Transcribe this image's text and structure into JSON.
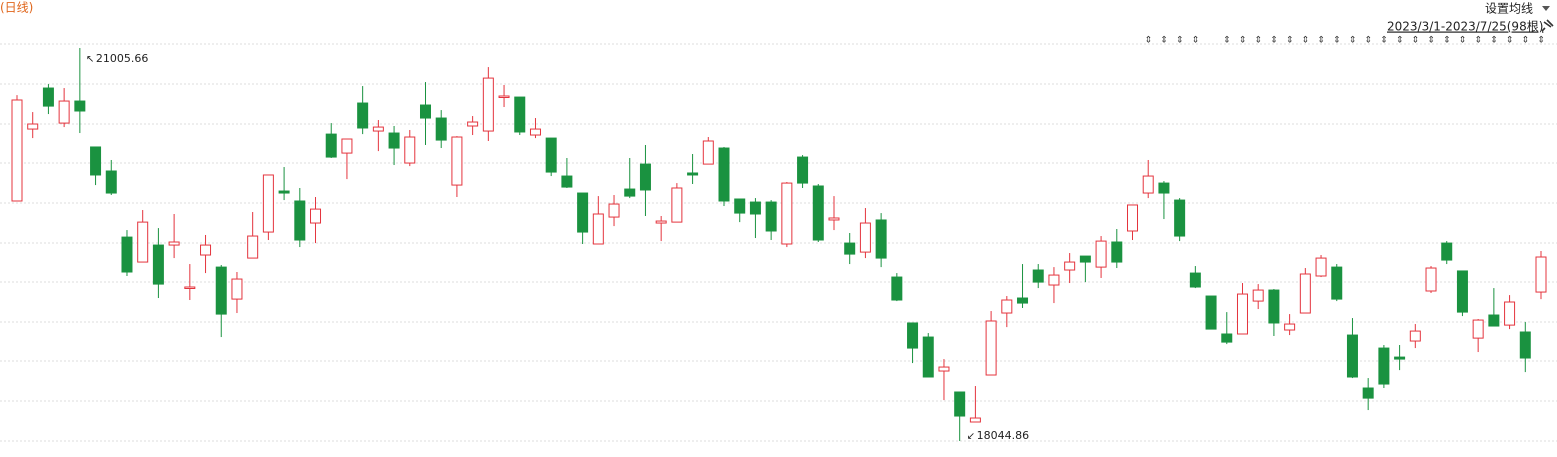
{
  "chart_data": {
    "type": "candlestick",
    "title": "(日线)",
    "series": {
      "open": [
        19853,
        20395,
        20704,
        20440,
        20606,
        20260,
        20079,
        19581,
        19393,
        19521,
        19521,
        19197,
        19446,
        19355,
        19114,
        19423,
        19619,
        19928,
        19853,
        19687,
        20357,
        20214,
        20591,
        20380,
        20365,
        20139,
        20576,
        20478,
        19973,
        20418,
        20380,
        20636,
        20636,
        20350,
        20327,
        20041,
        19913,
        19529,
        19732,
        19943,
        20131,
        19687,
        19694,
        20064,
        20131,
        20252,
        19868,
        19845,
        19845,
        19529,
        20184,
        19966,
        19710,
        19536,
        19468,
        19710,
        19280,
        18934,
        18828,
        18572,
        18414,
        18188,
        18542,
        19009,
        19122,
        19333,
        19220,
        19333,
        19438,
        19355,
        19544,
        19627,
        19913,
        19988,
        19860,
        19310,
        19137,
        18851,
        18851,
        19099,
        19182,
        18881,
        19009,
        19288,
        19355,
        18843,
        18444,
        18745,
        18677,
        18798,
        19175,
        19536,
        19326,
        18820,
        18994,
        18918,
        18866,
        19167
      ],
      "high": [
        20651,
        20523,
        20734,
        20704,
        21005.66,
        20260,
        20162,
        19634,
        19785,
        19649,
        19755,
        19378,
        19597,
        19371,
        19318,
        19770,
        20049,
        20109,
        19951,
        19883,
        20440,
        20320,
        20719,
        20463,
        20418,
        20388,
        20749,
        20538,
        20342,
        20493,
        20862,
        20727,
        20636,
        20478,
        20327,
        20177,
        19913,
        19890,
        19898,
        20177,
        20275,
        19740,
        19988,
        20207,
        20335,
        20260,
        19868,
        19875,
        19860,
        19996,
        20199,
        19981,
        19890,
        19612,
        19800,
        19762,
        19310,
        18934,
        18858,
        18662,
        18414,
        18459,
        19024,
        19137,
        19378,
        19378,
        19355,
        19461,
        19438,
        19589,
        19642,
        19823,
        20162,
        20003,
        19875,
        19363,
        19137,
        19016,
        19235,
        19227,
        19190,
        19001,
        19348,
        19446,
        19378,
        18971,
        18519,
        18768,
        18768,
        18926,
        19363,
        19551,
        19326,
        18964,
        19197,
        19144,
        18941,
        19476
      ],
      "low": [
        19853,
        20327,
        20508,
        20410,
        20365,
        19973,
        19898,
        19288,
        19393,
        19122,
        19423,
        19107,
        19310,
        18828,
        19009,
        19423,
        19559,
        19860,
        19506,
        19536,
        20177,
        20018,
        20357,
        20229,
        20124,
        20116,
        20275,
        20252,
        19883,
        20350,
        20305,
        20561,
        20350,
        20327,
        20041,
        19951,
        19529,
        19529,
        19664,
        19875,
        19740,
        19551,
        19694,
        19981,
        20131,
        19815,
        19694,
        19574,
        19559,
        19506,
        19951,
        19544,
        19634,
        19378,
        19423,
        19355,
        19099,
        18632,
        18527,
        18353,
        18044.86,
        18188,
        18542,
        18903,
        19047,
        19197,
        19084,
        19235,
        19242,
        19273,
        19348,
        19559,
        19875,
        19717,
        19551,
        19197,
        18888,
        18775,
        18851,
        19039,
        18836,
        18843,
        19009,
        19280,
        19099,
        18519,
        18278,
        18444,
        18579,
        18745,
        19160,
        19378,
        18986,
        18715,
        18911,
        18888,
        18564,
        19114
      ],
      "close": [
        20614,
        20433,
        20568,
        20606,
        20531,
        20049,
        19913,
        19318,
        19694,
        19227,
        19544,
        19205,
        19521,
        19001,
        19265,
        19589,
        20049,
        19913,
        19559,
        19792,
        20184,
        20320,
        20403,
        20410,
        20252,
        20335,
        20478,
        20312,
        20335,
        20448,
        20779,
        20644,
        20373,
        20395,
        20071,
        19958,
        19619,
        19755,
        19830,
        19890,
        19936,
        19702,
        19951,
        20049,
        20305,
        19853,
        19762,
        19755,
        19627,
        19988,
        19988,
        19559,
        19725,
        19453,
        19687,
        19423,
        19107,
        18745,
        18527,
        18602,
        18233,
        18218,
        18949,
        19107,
        19084,
        19242,
        19295,
        19393,
        19393,
        19551,
        19393,
        19823,
        20041,
        19913,
        19589,
        19205,
        18888,
        18790,
        19152,
        19182,
        18934,
        18926,
        19303,
        19423,
        19114,
        18527,
        18368,
        18474,
        18662,
        18873,
        19348,
        19408,
        19016,
        18956,
        18911,
        19092,
        18670,
        19431
      ]
    },
    "up_color": "#e4343d",
    "down_color": "#1a9240"
  },
  "toolbar": {
    "ma_setting": "设置均线",
    "date_range": "2023/3/1-2023/7/25(98根)"
  }
}
